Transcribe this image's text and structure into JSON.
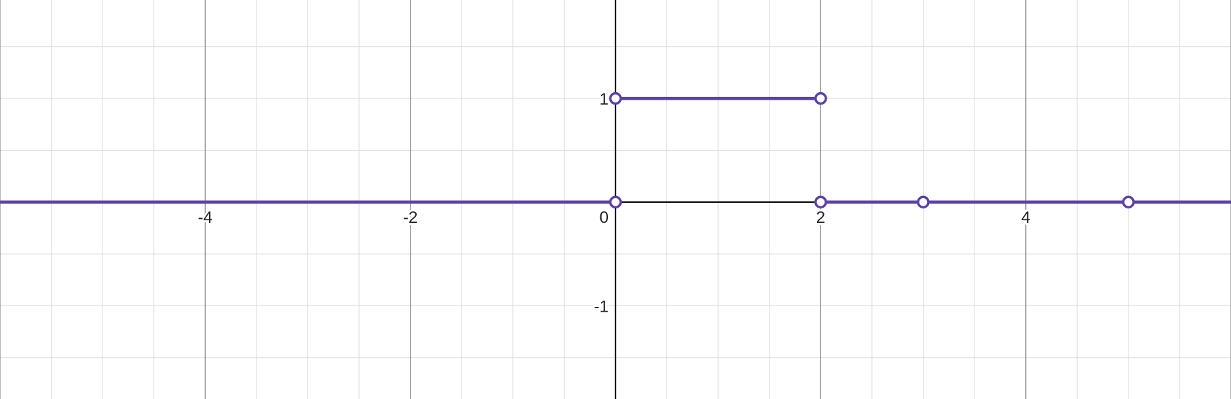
{
  "chart_data": {
    "type": "line",
    "title": "",
    "xlabel": "",
    "ylabel": "",
    "xlim": [
      -6,
      6
    ],
    "ylim": [
      -1.9,
      1.95
    ],
    "grid": true,
    "minor_grid_step": 0.5,
    "major_grid_step": 2,
    "x_tick_labels": [
      {
        "value": -4,
        "text": "-4"
      },
      {
        "value": -2,
        "text": "-2"
      },
      {
        "value": 0,
        "text": "0"
      },
      {
        "value": 2,
        "text": "2"
      },
      {
        "value": 4,
        "text": "4"
      }
    ],
    "y_tick_labels": [
      {
        "value": 1,
        "text": "1"
      },
      {
        "value": -1,
        "text": "-1"
      }
    ],
    "series": [
      {
        "color": "#5b42a6",
        "segments": [
          {
            "x": [
              -6,
              0
            ],
            "y": [
              0,
              0
            ]
          },
          {
            "x": [
              0,
              2
            ],
            "y": [
              1,
              1
            ]
          },
          {
            "x": [
              2,
              6
            ],
            "y": [
              0,
              0
            ]
          }
        ],
        "open_points": [
          {
            "x": 0,
            "y": 1
          },
          {
            "x": 2,
            "y": 1
          },
          {
            "x": 0,
            "y": 0
          },
          {
            "x": 2,
            "y": 0
          },
          {
            "x": 3,
            "y": 0
          },
          {
            "x": 5,
            "y": 0
          }
        ]
      }
    ]
  }
}
